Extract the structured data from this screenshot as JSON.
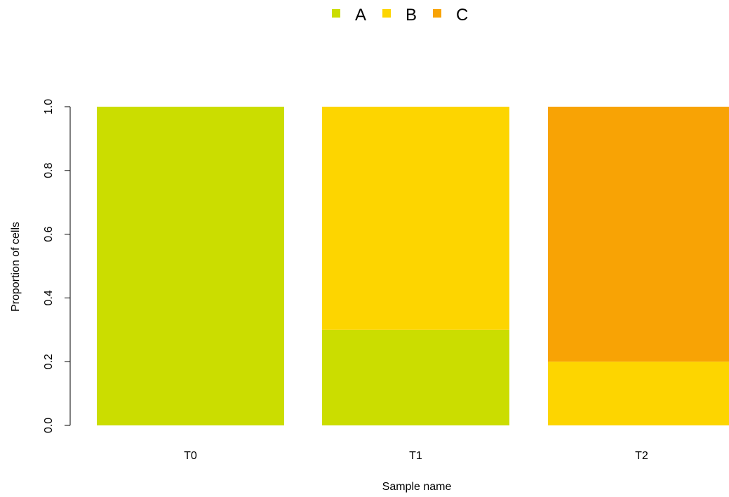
{
  "chart_data": {
    "type": "bar",
    "stacked": true,
    "categories": [
      "T0",
      "T1",
      "T2"
    ],
    "series": [
      {
        "name": "A",
        "color": "#cbdd00",
        "values": [
          1.0,
          0.3,
          0.0
        ]
      },
      {
        "name": "B",
        "color": "#fdd500",
        "values": [
          0.0,
          0.7,
          0.2
        ]
      },
      {
        "name": "C",
        "color": "#f8a305",
        "values": [
          0.0,
          0.0,
          0.8
        ]
      }
    ],
    "xlabel": "Sample name",
    "ylabel": "Proportion of cells",
    "ylim": [
      0,
      1
    ],
    "yticks": [
      "0.0",
      "0.2",
      "0.4",
      "0.6",
      "0.8",
      "1.0"
    ],
    "legend_position": "top-center",
    "grid": false
  }
}
